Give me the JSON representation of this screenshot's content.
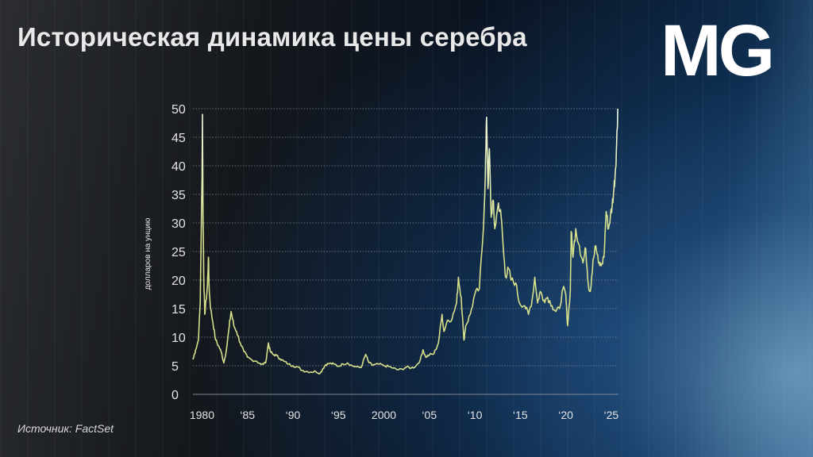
{
  "title": "Историческая динамика цены серебра",
  "logo": "MG",
  "source": "Источник: FactSet",
  "colors": {
    "line": "#d6e08a",
    "line_peak": "#eef6e0",
    "grid": "#7d8796"
  },
  "chart_data": {
    "type": "line",
    "title": "Историческая динамика цены серебра",
    "ylabel": "долларов на унцию",
    "xlabel": "",
    "ylim": [
      0,
      50
    ],
    "xlim": [
      1979.0,
      2025.8
    ],
    "grid": true,
    "y_ticks": [
      "0",
      "5",
      "10",
      "15",
      "20",
      "25",
      "30",
      "35",
      "40",
      "45",
      "50"
    ],
    "x_ticks": [
      {
        "label": "1980",
        "x": 1980
      },
      {
        "label": "‘85",
        "x": 1985
      },
      {
        "label": "‘90",
        "x": 1990
      },
      {
        "label": "‘95",
        "x": 1995
      },
      {
        "label": "2000",
        "x": 2000
      },
      {
        "label": "‘05",
        "x": 2005
      },
      {
        "label": "‘10",
        "x": 2010
      },
      {
        "label": "‘15",
        "x": 2015
      },
      {
        "label": "‘20",
        "x": 2020
      },
      {
        "label": "‘25",
        "x": 2025
      }
    ],
    "series": [
      {
        "points": [
          [
            1979.0,
            6.1
          ],
          [
            1979.3,
            7.8
          ],
          [
            1979.6,
            9.5
          ],
          [
            1979.8,
            16.0
          ],
          [
            1980.0,
            38.0
          ],
          [
            1980.05,
            49.0
          ],
          [
            1980.12,
            30.0
          ],
          [
            1980.2,
            20.0
          ],
          [
            1980.3,
            14.0
          ],
          [
            1980.45,
            16.5
          ],
          [
            1980.6,
            19.0
          ],
          [
            1980.7,
            24.0
          ],
          [
            1980.8,
            18.0
          ],
          [
            1980.95,
            15.0
          ],
          [
            1981.2,
            12.5
          ],
          [
            1981.5,
            9.5
          ],
          [
            1981.8,
            8.5
          ],
          [
            1982.1,
            7.5
          ],
          [
            1982.4,
            5.5
          ],
          [
            1982.7,
            8.0
          ],
          [
            1983.0,
            12.0
          ],
          [
            1983.2,
            14.5
          ],
          [
            1983.5,
            12.0
          ],
          [
            1983.8,
            11.0
          ],
          [
            1984.2,
            9.0
          ],
          [
            1984.6,
            7.5
          ],
          [
            1985.0,
            6.5
          ],
          [
            1985.5,
            6.0
          ],
          [
            1986.0,
            5.8
          ],
          [
            1986.5,
            5.2
          ],
          [
            1987.0,
            5.5
          ],
          [
            1987.3,
            9.0
          ],
          [
            1987.5,
            7.5
          ],
          [
            1987.8,
            7.0
          ],
          [
            1988.2,
            6.8
          ],
          [
            1988.6,
            6.2
          ],
          [
            1989.0,
            5.8
          ],
          [
            1989.5,
            5.3
          ],
          [
            1990.0,
            5.0
          ],
          [
            1990.5,
            4.8
          ],
          [
            1991.0,
            4.2
          ],
          [
            1991.5,
            4.0
          ],
          [
            1992.0,
            3.9
          ],
          [
            1992.5,
            4.0
          ],
          [
            1993.0,
            3.7
          ],
          [
            1993.3,
            4.5
          ],
          [
            1993.6,
            5.2
          ],
          [
            1994.0,
            5.4
          ],
          [
            1994.5,
            5.3
          ],
          [
            1995.0,
            4.9
          ],
          [
            1995.5,
            5.3
          ],
          [
            1996.0,
            5.5
          ],
          [
            1996.5,
            5.0
          ],
          [
            1997.0,
            4.8
          ],
          [
            1997.5,
            4.7
          ],
          [
            1998.0,
            7.0
          ],
          [
            1998.3,
            5.7
          ],
          [
            1998.7,
            5.1
          ],
          [
            1999.0,
            5.2
          ],
          [
            1999.5,
            5.3
          ],
          [
            2000.0,
            5.0
          ],
          [
            2000.5,
            4.9
          ],
          [
            2001.0,
            4.6
          ],
          [
            2001.5,
            4.3
          ],
          [
            2002.0,
            4.4
          ],
          [
            2002.5,
            4.8
          ],
          [
            2003.0,
            4.6
          ],
          [
            2003.5,
            4.9
          ],
          [
            2004.0,
            6.0
          ],
          [
            2004.3,
            7.8
          ],
          [
            2004.6,
            6.5
          ],
          [
            2005.0,
            6.9
          ],
          [
            2005.5,
            7.1
          ],
          [
            2006.0,
            9.0
          ],
          [
            2006.4,
            14.0
          ],
          [
            2006.6,
            11.0
          ],
          [
            2007.0,
            13.0
          ],
          [
            2007.5,
            13.2
          ],
          [
            2008.0,
            16.0
          ],
          [
            2008.2,
            20.5
          ],
          [
            2008.5,
            17.0
          ],
          [
            2008.8,
            9.5
          ],
          [
            2009.0,
            12.0
          ],
          [
            2009.5,
            14.0
          ],
          [
            2010.0,
            17.5
          ],
          [
            2010.5,
            18.5
          ],
          [
            2010.9,
            28.0
          ],
          [
            2011.15,
            38.0
          ],
          [
            2011.3,
            48.5
          ],
          [
            2011.45,
            36.0
          ],
          [
            2011.6,
            43.0
          ],
          [
            2011.8,
            31.0
          ],
          [
            2012.0,
            34.0
          ],
          [
            2012.2,
            29.0
          ],
          [
            2012.6,
            33.5
          ],
          [
            2012.9,
            31.0
          ],
          [
            2013.2,
            24.0
          ],
          [
            2013.4,
            20.5
          ],
          [
            2013.7,
            22.0
          ],
          [
            2014.0,
            20.0
          ],
          [
            2014.5,
            19.5
          ],
          [
            2014.9,
            16.0
          ],
          [
            2015.5,
            15.5
          ],
          [
            2015.9,
            14.0
          ],
          [
            2016.3,
            16.5
          ],
          [
            2016.6,
            20.5
          ],
          [
            2016.9,
            16.0
          ],
          [
            2017.2,
            18.0
          ],
          [
            2017.6,
            16.5
          ],
          [
            2018.0,
            17.0
          ],
          [
            2018.5,
            15.5
          ],
          [
            2018.9,
            14.5
          ],
          [
            2019.3,
            15.0
          ],
          [
            2019.7,
            18.5
          ],
          [
            2020.0,
            17.5
          ],
          [
            2020.2,
            12.0
          ],
          [
            2020.5,
            18.0
          ],
          [
            2020.6,
            28.5
          ],
          [
            2020.8,
            24.0
          ],
          [
            2021.1,
            29.0
          ],
          [
            2021.5,
            26.0
          ],
          [
            2021.9,
            23.0
          ],
          [
            2022.2,
            25.5
          ],
          [
            2022.5,
            19.0
          ],
          [
            2022.7,
            18.0
          ],
          [
            2023.0,
            23.5
          ],
          [
            2023.3,
            26.0
          ],
          [
            2023.6,
            23.0
          ],
          [
            2023.9,
            22.5
          ],
          [
            2024.2,
            24.0
          ],
          [
            2024.45,
            32.0
          ],
          [
            2024.7,
            29.0
          ],
          [
            2024.9,
            31.0
          ],
          [
            2025.1,
            33.0
          ],
          [
            2025.3,
            36.0
          ],
          [
            2025.45,
            39.0
          ],
          [
            2025.6,
            44.0
          ],
          [
            2025.72,
            50.0
          ]
        ]
      }
    ]
  }
}
